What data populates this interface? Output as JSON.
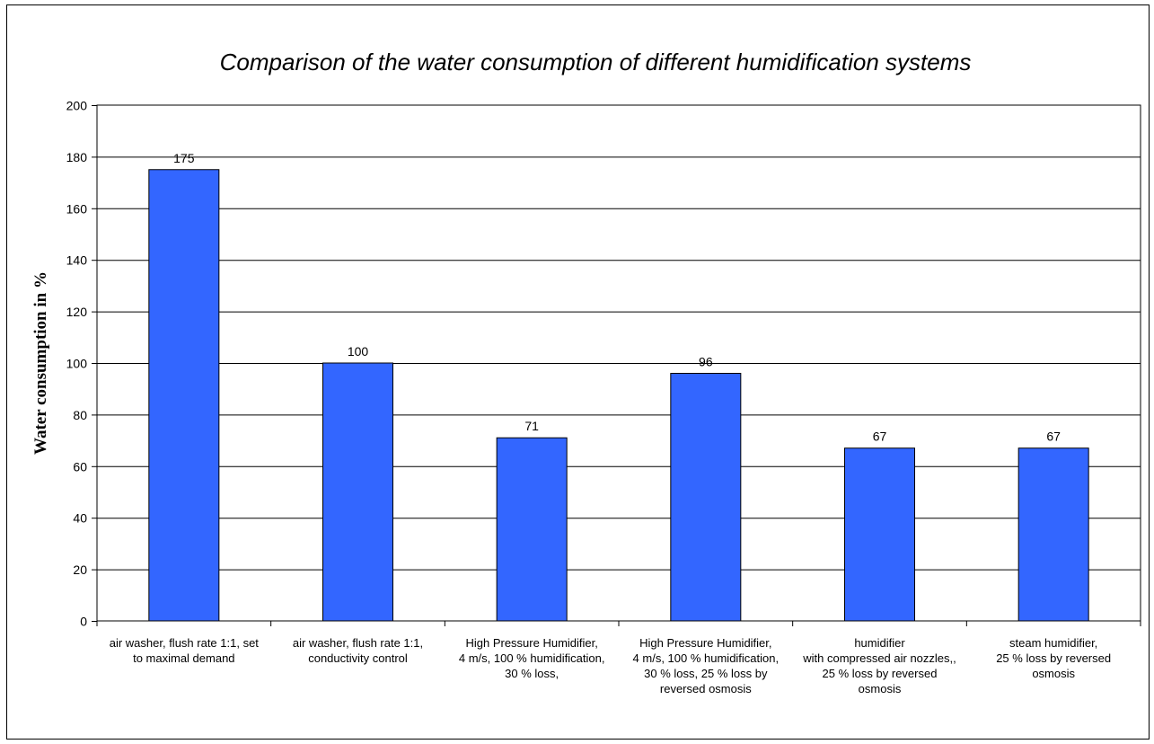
{
  "chart_data": {
    "type": "bar",
    "title": "Comparison of the water consumption of different humidification systems",
    "xlabel": "",
    "ylabel": "Water consumption in %",
    "ylim": [
      0,
      200
    ],
    "yticks": [
      0,
      20,
      40,
      60,
      80,
      100,
      120,
      140,
      160,
      180,
      200
    ],
    "grid": true,
    "legend": "none",
    "bar_color": "#3366FF",
    "categories": [
      [
        "air washer, flush rate 1:1, set",
        "to maximal demand"
      ],
      [
        "air washer, flush rate 1:1,",
        "conductivity control"
      ],
      [
        "High Pressure Humidifier,",
        "4 m/s, 100 % humidification,",
        "30 % loss,"
      ],
      [
        "High Pressure Humidifier,",
        "4 m/s, 100 % humidification,",
        "30 % loss, 25 % loss by",
        "reversed osmosis"
      ],
      [
        "humidifier",
        "with compressed air nozzles,,",
        "25 % loss by reversed",
        "osmosis"
      ],
      [
        "steam humidifier,",
        "25 % loss by reversed",
        "osmosis"
      ]
    ],
    "values": [
      175,
      100,
      71,
      96,
      67,
      67
    ],
    "data_labels": [
      "175",
      "100",
      "71",
      "96",
      "67",
      "67"
    ]
  }
}
